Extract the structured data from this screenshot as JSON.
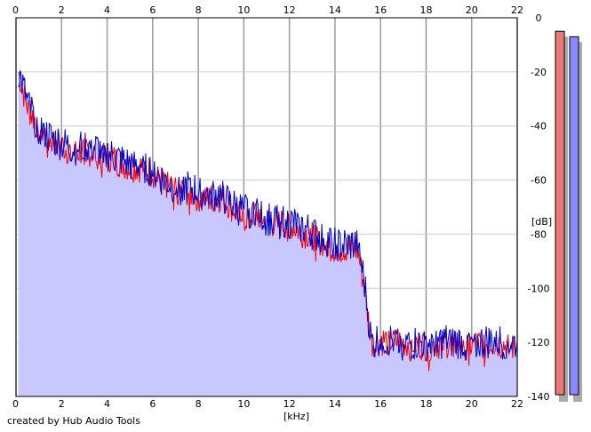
{
  "chart_data": {
    "type": "area",
    "title": "",
    "xlabel": "[kHz]",
    "ylabel": "[dB]",
    "xlim": [
      0,
      22
    ],
    "ylim": [
      -140,
      0
    ],
    "x_ticks": [
      0,
      2,
      4,
      6,
      8,
      10,
      12,
      14,
      16,
      18,
      20,
      22
    ],
    "y_ticks": [
      0,
      -20,
      -40,
      -60,
      -80,
      -100,
      -120,
      -140
    ],
    "grid": true,
    "legend": "none",
    "series": [
      {
        "color": "#ff0000",
        "x": [
          0.1,
          0.5,
          1,
          1.5,
          2,
          2.5,
          3,
          3.5,
          4,
          4.5,
          5,
          5.5,
          6,
          6.5,
          7,
          7.5,
          8,
          8.5,
          9,
          9.5,
          10,
          10.5,
          11,
          11.5,
          12,
          12.5,
          13,
          13.5,
          14,
          14.5,
          15,
          15.3,
          15.6,
          16,
          17,
          18,
          19,
          20,
          21,
          22
        ],
        "values": [
          -20,
          -33,
          -40,
          -45,
          -47,
          -50,
          -49,
          -50,
          -51,
          -53,
          -55,
          -55,
          -57,
          -61,
          -63,
          -64,
          -66,
          -67,
          -66,
          -70,
          -74,
          -72,
          -75,
          -76,
          -76,
          -79,
          -80,
          -83,
          -85,
          -85,
          -86,
          -100,
          -120,
          -119,
          -120,
          -121,
          -120,
          -121,
          -120,
          -122
        ]
      },
      {
        "color": "#0000cc",
        "x": [
          0.1,
          0.5,
          1,
          1.5,
          2,
          2.5,
          3,
          3.5,
          4,
          4.5,
          5,
          5.5,
          6,
          6.5,
          7,
          7.5,
          8,
          8.5,
          9,
          9.5,
          10,
          10.5,
          11,
          11.5,
          12,
          12.5,
          13,
          13.5,
          14,
          14.5,
          15,
          15.3,
          15.6,
          16,
          17,
          18,
          19,
          20,
          21,
          22
        ],
        "values": [
          -19,
          -31,
          -40,
          -44,
          -46,
          -48,
          -47,
          -48,
          -50,
          -52,
          -54,
          -54,
          -56,
          -60,
          -62,
          -62,
          -64,
          -65,
          -65,
          -69,
          -71,
          -70,
          -74,
          -74,
          -75,
          -77,
          -79,
          -81,
          -83,
          -84,
          -83,
          -98,
          -120,
          -118,
          -120,
          -120,
          -119,
          -120,
          -119,
          -120
        ]
      }
    ],
    "level_meters": [
      {
        "color": "#ee7777",
        "shadow": "#aaaaaa",
        "level_db": -5
      },
      {
        "color": "#8888ff",
        "shadow": "#aaaaaa",
        "level_db": -7
      }
    ],
    "colors": {
      "fill": "#c8c8ff",
      "grid_major": "#999999",
      "grid_minor": "#cccccc",
      "frame": "#000000"
    }
  },
  "footer": {
    "credit": "created by Hub Audio Tools"
  }
}
